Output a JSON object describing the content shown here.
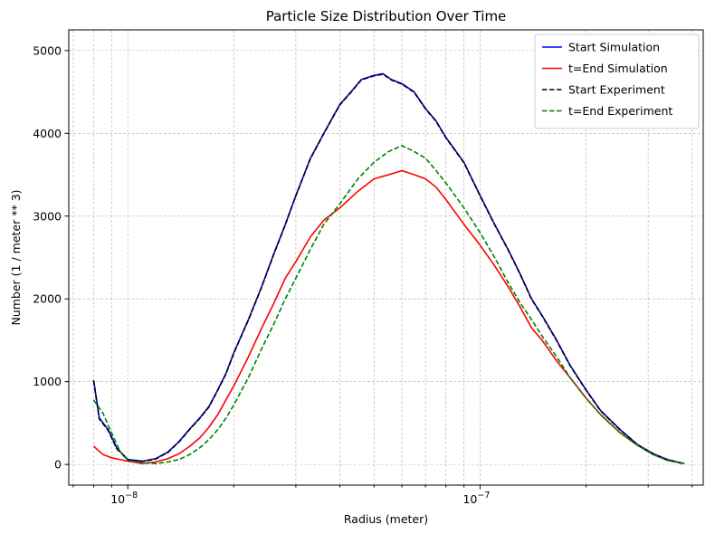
{
  "chart_data": {
    "type": "line",
    "title": "Particle Size Distribution Over Time",
    "xlabel": "Radius (meter)",
    "ylabel": "Number (1 / meter ** 3)",
    "xscale": "log",
    "xlim": [
      6.8e-09,
      4.3e-07
    ],
    "ylim": [
      -250,
      5250
    ],
    "grid": true,
    "legend_position": "top-right",
    "x_major_ticks": [
      {
        "value": 1e-08,
        "base": "10",
        "exp": "−8"
      },
      {
        "value": 1e-07,
        "base": "10",
        "exp": "−7"
      }
    ],
    "y_ticks": [
      {
        "value": 0,
        "label": "0"
      },
      {
        "value": 1000,
        "label": "1000"
      },
      {
        "value": 2000,
        "label": "2000"
      },
      {
        "value": 3000,
        "label": "3000"
      },
      {
        "value": 4000,
        "label": "4000"
      },
      {
        "value": 5000,
        "label": "5000"
      }
    ],
    "series": [
      {
        "name": "Start Simulation",
        "color": "#0000ff",
        "dash": "solid",
        "points": [
          [
            8e-09,
            1020
          ],
          [
            8.3e-09,
            560
          ],
          [
            8.8e-09,
            420
          ],
          [
            9.3e-09,
            200
          ],
          [
            1e-08,
            60
          ],
          [
            1.1e-08,
            40
          ],
          [
            1.2e-08,
            70
          ],
          [
            1.3e-08,
            150
          ],
          [
            1.4e-08,
            280
          ],
          [
            1.5e-08,
            430
          ],
          [
            1.6e-08,
            560
          ],
          [
            1.7e-08,
            700
          ],
          [
            1.8e-08,
            900
          ],
          [
            1.9e-08,
            1100
          ],
          [
            2e-08,
            1350
          ],
          [
            2.2e-08,
            1750
          ],
          [
            2.4e-08,
            2150
          ],
          [
            2.6e-08,
            2550
          ],
          [
            2.8e-08,
            2900
          ],
          [
            3e-08,
            3250
          ],
          [
            3.3e-08,
            3700
          ],
          [
            3.6e-08,
            4000
          ],
          [
            4e-08,
            4350
          ],
          [
            4.3e-08,
            4500
          ],
          [
            4.6e-08,
            4650
          ],
          [
            5e-08,
            4700
          ],
          [
            5.3e-08,
            4720
          ],
          [
            5.6e-08,
            4650
          ],
          [
            6e-08,
            4600
          ],
          [
            6.5e-08,
            4500
          ],
          [
            7e-08,
            4300
          ],
          [
            7.5e-08,
            4150
          ],
          [
            8e-08,
            3950
          ],
          [
            9e-08,
            3650
          ],
          [
            1e-07,
            3250
          ],
          [
            1.1e-07,
            2900
          ],
          [
            1.2e-07,
            2600
          ],
          [
            1.3e-07,
            2300
          ],
          [
            1.4e-07,
            2000
          ],
          [
            1.5e-07,
            1800
          ],
          [
            1.65e-07,
            1500
          ],
          [
            1.8e-07,
            1200
          ],
          [
            2e-07,
            900
          ],
          [
            2.2e-07,
            650
          ],
          [
            2.5e-07,
            420
          ],
          [
            2.8e-07,
            240
          ],
          [
            3.1e-07,
            130
          ],
          [
            3.4e-07,
            60
          ],
          [
            3.8e-07,
            10
          ]
        ]
      },
      {
        "name": "t=End Simulation",
        "color": "#ff0000",
        "dash": "solid",
        "points": [
          [
            8e-09,
            220
          ],
          [
            8.5e-09,
            120
          ],
          [
            9e-09,
            80
          ],
          [
            1e-08,
            40
          ],
          [
            1.1e-08,
            10
          ],
          [
            1.2e-08,
            30
          ],
          [
            1.3e-08,
            70
          ],
          [
            1.4e-08,
            130
          ],
          [
            1.5e-08,
            220
          ],
          [
            1.6e-08,
            320
          ],
          [
            1.7e-08,
            450
          ],
          [
            1.8e-08,
            600
          ],
          [
            1.9e-08,
            780
          ],
          [
            2e-08,
            950
          ],
          [
            2.2e-08,
            1300
          ],
          [
            2.4e-08,
            1650
          ],
          [
            2.6e-08,
            1950
          ],
          [
            2.8e-08,
            2250
          ],
          [
            3e-08,
            2450
          ],
          [
            3.3e-08,
            2750
          ],
          [
            3.6e-08,
            2950
          ],
          [
            4e-08,
            3100
          ],
          [
            4.5e-08,
            3300
          ],
          [
            5e-08,
            3450
          ],
          [
            5.5e-08,
            3500
          ],
          [
            6e-08,
            3550
          ],
          [
            6.5e-08,
            3500
          ],
          [
            7e-08,
            3450
          ],
          [
            7.5e-08,
            3350
          ],
          [
            8e-08,
            3200
          ],
          [
            9e-08,
            2900
          ],
          [
            1e-07,
            2650
          ],
          [
            1.1e-07,
            2400
          ],
          [
            1.2e-07,
            2150
          ],
          [
            1.3e-07,
            1900
          ],
          [
            1.4e-07,
            1650
          ],
          [
            1.5e-07,
            1500
          ],
          [
            1.65e-07,
            1250
          ],
          [
            1.8e-07,
            1050
          ],
          [
            2e-07,
            800
          ],
          [
            2.2e-07,
            600
          ],
          [
            2.5e-07,
            380
          ],
          [
            2.8e-07,
            230
          ],
          [
            3.1e-07,
            120
          ],
          [
            3.4e-07,
            50
          ],
          [
            3.8e-07,
            10
          ]
        ]
      },
      {
        "name": "Start Experiment",
        "color": "#000000",
        "dash": "dashed",
        "points": [
          [
            8e-09,
            1010
          ],
          [
            8.3e-09,
            550
          ],
          [
            8.8e-09,
            410
          ],
          [
            9.3e-09,
            190
          ],
          [
            1e-08,
            55
          ],
          [
            1.1e-08,
            35
          ],
          [
            1.2e-08,
            65
          ],
          [
            1.3e-08,
            145
          ],
          [
            1.4e-08,
            275
          ],
          [
            1.5e-08,
            425
          ],
          [
            1.6e-08,
            555
          ],
          [
            1.7e-08,
            695
          ],
          [
            1.8e-08,
            895
          ],
          [
            1.9e-08,
            1095
          ],
          [
            2e-08,
            1345
          ],
          [
            2.2e-08,
            1745
          ],
          [
            2.4e-08,
            2145
          ],
          [
            2.6e-08,
            2545
          ],
          [
            2.8e-08,
            2895
          ],
          [
            3e-08,
            3245
          ],
          [
            3.3e-08,
            3695
          ],
          [
            3.6e-08,
            3995
          ],
          [
            4e-08,
            4345
          ],
          [
            4.3e-08,
            4495
          ],
          [
            4.6e-08,
            4645
          ],
          [
            5e-08,
            4695
          ],
          [
            5.3e-08,
            4715
          ],
          [
            5.6e-08,
            4645
          ],
          [
            6e-08,
            4595
          ],
          [
            6.5e-08,
            4495
          ],
          [
            7e-08,
            4295
          ],
          [
            7.5e-08,
            4145
          ],
          [
            8e-08,
            3945
          ],
          [
            9e-08,
            3645
          ],
          [
            1e-07,
            3245
          ],
          [
            1.1e-07,
            2895
          ],
          [
            1.2e-07,
            2595
          ],
          [
            1.3e-07,
            2295
          ],
          [
            1.4e-07,
            1995
          ],
          [
            1.5e-07,
            1795
          ],
          [
            1.65e-07,
            1495
          ],
          [
            1.8e-07,
            1195
          ],
          [
            2e-07,
            895
          ],
          [
            2.2e-07,
            645
          ],
          [
            2.5e-07,
            415
          ],
          [
            2.8e-07,
            235
          ],
          [
            3.1e-07,
            125
          ],
          [
            3.4e-07,
            55
          ],
          [
            3.8e-07,
            8
          ]
        ]
      },
      {
        "name": "t=End Experiment",
        "color": "#008000",
        "dash": "dashed",
        "points": [
          [
            8e-09,
            780
          ],
          [
            8.5e-09,
            620
          ],
          [
            9e-09,
            380
          ],
          [
            9.5e-09,
            160
          ],
          [
            1e-08,
            50
          ],
          [
            1.1e-08,
            20
          ],
          [
            1.2e-08,
            10
          ],
          [
            1.3e-08,
            30
          ],
          [
            1.4e-08,
            60
          ],
          [
            1.5e-08,
            120
          ],
          [
            1.6e-08,
            200
          ],
          [
            1.7e-08,
            300
          ],
          [
            1.8e-08,
            420
          ],
          [
            1.9e-08,
            560
          ],
          [
            2e-08,
            720
          ],
          [
            2.2e-08,
            1050
          ],
          [
            2.4e-08,
            1400
          ],
          [
            2.6e-08,
            1700
          ],
          [
            2.8e-08,
            2000
          ],
          [
            3e-08,
            2250
          ],
          [
            3.3e-08,
            2600
          ],
          [
            3.6e-08,
            2900
          ],
          [
            4e-08,
            3150
          ],
          [
            4.5e-08,
            3450
          ],
          [
            5e-08,
            3650
          ],
          [
            5.5e-08,
            3780
          ],
          [
            6e-08,
            3850
          ],
          [
            6.5e-08,
            3780
          ],
          [
            7e-08,
            3700
          ],
          [
            7.5e-08,
            3550
          ],
          [
            8e-08,
            3400
          ],
          [
            9e-08,
            3100
          ],
          [
            1e-07,
            2800
          ],
          [
            1.1e-07,
            2500
          ],
          [
            1.2e-07,
            2200
          ],
          [
            1.3e-07,
            1950
          ],
          [
            1.4e-07,
            1750
          ],
          [
            1.5e-07,
            1550
          ],
          [
            1.65e-07,
            1300
          ],
          [
            1.8e-07,
            1050
          ],
          [
            2e-07,
            800
          ],
          [
            2.2e-07,
            600
          ],
          [
            2.5e-07,
            380
          ],
          [
            2.8e-07,
            230
          ],
          [
            3.1e-07,
            120
          ],
          [
            3.4e-07,
            50
          ],
          [
            3.8e-07,
            10
          ]
        ]
      }
    ]
  }
}
